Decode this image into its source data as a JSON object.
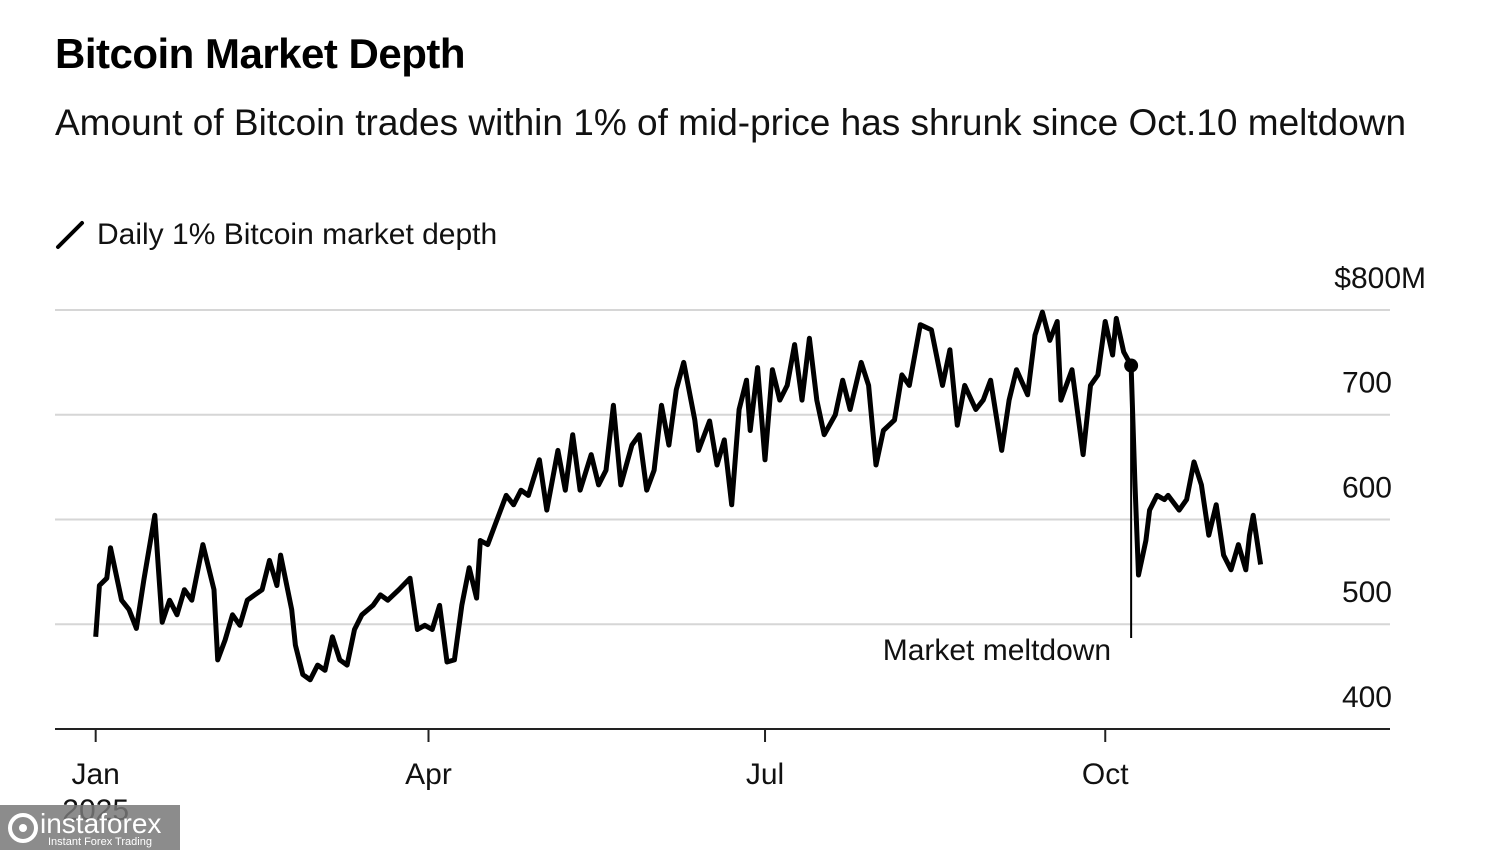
{
  "chart_data": {
    "type": "line",
    "title": "Bitcoin Market Depth",
    "subtitle": "Amount of Bitcoin trades within 1% of mid-price has shrunk since Oct.10 meltdown",
    "xlabel": "2025",
    "x": [
      1,
      2,
      4,
      5,
      8,
      10,
      12,
      14,
      15,
      17,
      18,
      19,
      21,
      23,
      25,
      27,
      30,
      33,
      34,
      36,
      38,
      40,
      42,
      44,
      46,
      48,
      50,
      51,
      54,
      55,
      57,
      59,
      61,
      63,
      65,
      67,
      69,
      71,
      73,
      76,
      78,
      80,
      83,
      86,
      88,
      90,
      92,
      94,
      96,
      98,
      100,
      102,
      104,
      105,
      107,
      109,
      112,
      114,
      116,
      118,
      121,
      123,
      126,
      128,
      130,
      132,
      135,
      137,
      139,
      141,
      143,
      146,
      148,
      150,
      152,
      154,
      156,
      158,
      160,
      163,
      164,
      167,
      169,
      171,
      173,
      175,
      177,
      178,
      180,
      182,
      184,
      186,
      188,
      190,
      192,
      194,
      196,
      198,
      201,
      203,
      205,
      208,
      210,
      212,
      214,
      217,
      219,
      221,
      224,
      227,
      230,
      232,
      234,
      236,
      239,
      241,
      243,
      246,
      248,
      250,
      253,
      255,
      257,
      259,
      261,
      262,
      265,
      268,
      270,
      272,
      274,
      276,
      277,
      279,
      281,
      282,
      283,
      285,
      286,
      288,
      290,
      291,
      294,
      296,
      298,
      300,
      302,
      304,
      306,
      308,
      310,
      312,
      313,
      314,
      316
    ],
    "series": [
      {
        "name": "Daily 1% Bitcoin market depth",
        "color": "#000000",
        "values": [
          488,
          537,
          544,
          573,
          523,
          514,
          496,
          542,
          563,
          604,
          552,
          502,
          523,
          509,
          533,
          523,
          576,
          533,
          466,
          485,
          509,
          499,
          523,
          528,
          533,
          561,
          537,
          566,
          514,
          480,
          452,
          447,
          461,
          456,
          488,
          466,
          461,
          495,
          509,
          518,
          528,
          523,
          533,
          544,
          495,
          499,
          495,
          518,
          464,
          466,
          518,
          554,
          525,
          580,
          576,
          595,
          623,
          614,
          628,
          623,
          657,
          609,
          666,
          628,
          681,
          628,
          662,
          633,
          647,
          709,
          633,
          671,
          681,
          628,
          647,
          709,
          671,
          724,
          750,
          695,
          666,
          694,
          652,
          676,
          614,
          705,
          733,
          685,
          745,
          657,
          743,
          714,
          728,
          767,
          714,
          773,
          714,
          681,
          700,
          733,
          705,
          750,
          728,
          652,
          685,
          695,
          738,
          728,
          786,
          781,
          728,
          762,
          690,
          728,
          705,
          714,
          733,
          666,
          714,
          743,
          719,
          776,
          798,
          771,
          789,
          714,
          743,
          662,
          728,
          738,
          789,
          757,
          792,
          760,
          747,
          638,
          547,
          580,
          609,
          623,
          619,
          623,
          609,
          619,
          655,
          633,
          585,
          614,
          566,
          552,
          576,
          552,
          585,
          604,
          557
        ]
      }
    ],
    "xlim": [
      -10,
      351
    ],
    "xticks": [
      {
        "value": 1,
        "label": "Jan"
      },
      {
        "value": 91,
        "label": "Apr"
      },
      {
        "value": 182,
        "label": "Jul"
      },
      {
        "value": 274,
        "label": "Oct"
      }
    ],
    "ylim": [
      400,
      800
    ],
    "yticks": [
      400,
      500,
      600,
      700,
      {
        "value": 800,
        "label": "$800M"
      }
    ],
    "grid": true,
    "annotations": [
      {
        "text": "Market meltdown",
        "x": 281,
        "y": 747
      }
    ],
    "watermark": {
      "text": "instaforex",
      "tagline": "Instant Forex Trading"
    }
  }
}
